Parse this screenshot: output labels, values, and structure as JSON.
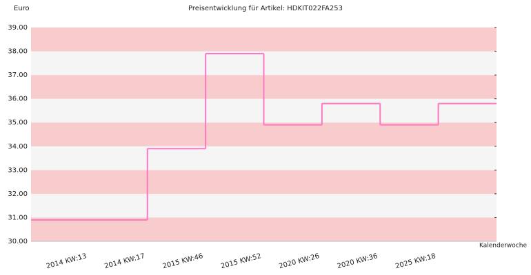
{
  "chart_data": {
    "type": "step",
    "title": "Preisentwicklung für Artikel: HDKIT022FA253",
    "y_label": "Euro",
    "x_label": "Kalenderwoche",
    "categories": [
      "2014 KW:13",
      "2014 KW:17",
      "2015 KW:46",
      "2015 KW:52",
      "2020 KW:26",
      "2020 KW:36",
      "2025 KW:18"
    ],
    "values": [
      30.9,
      33.9,
      37.9,
      34.9,
      35.8,
      34.9,
      35.8
    ],
    "color": "#ff77c0",
    "band_colors": [
      "#f5f5f5",
      "#f8cccc"
    ],
    "ylim": [
      30,
      39
    ],
    "yticks": [
      {
        "value": 30,
        "label": "30.00"
      },
      {
        "value": 31,
        "label": "31.00"
      },
      {
        "value": 32,
        "label": "32.00"
      },
      {
        "value": 33,
        "label": "33.00"
      },
      {
        "value": 34,
        "label": "34.00"
      },
      {
        "value": 35,
        "label": "35.00"
      },
      {
        "value": 36,
        "label": "36.00"
      },
      {
        "value": 37,
        "label": "37.00"
      },
      {
        "value": 38,
        "label": "38.00"
      },
      {
        "value": 39,
        "label": "39.00"
      }
    ]
  }
}
